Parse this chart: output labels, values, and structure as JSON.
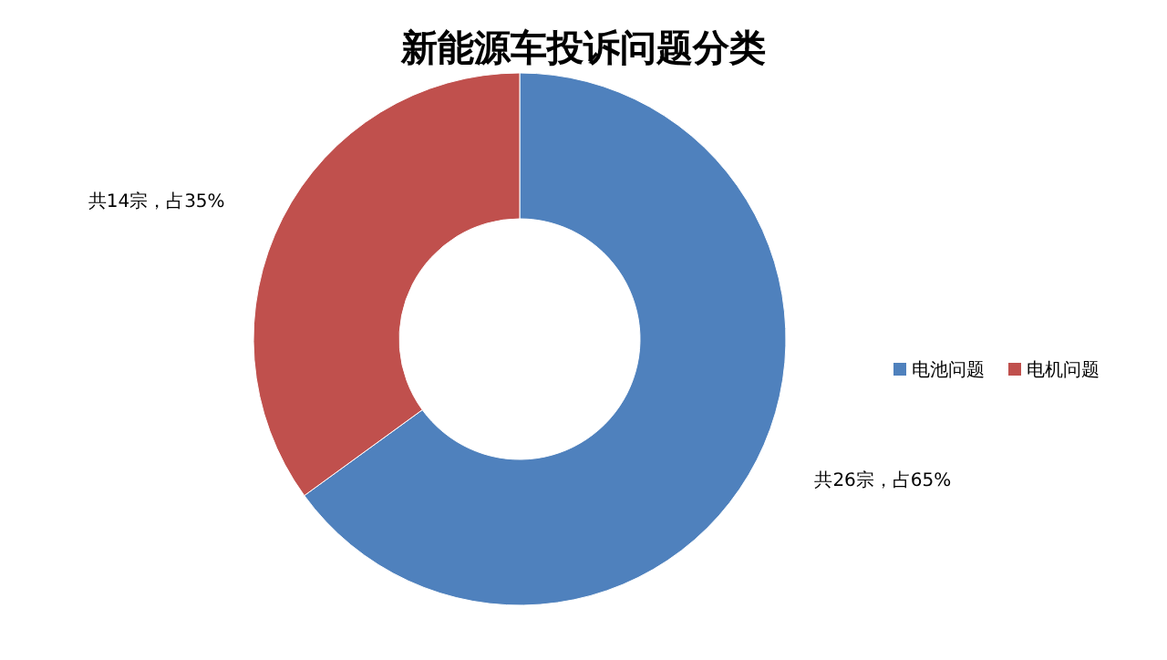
{
  "chart_data": {
    "type": "donut",
    "title": "新能源车投诉问题分类",
    "categories": [
      "电池问题",
      "电机问题"
    ],
    "values": [
      26,
      14
    ],
    "colors": [
      "#4f81bd",
      "#c0504d"
    ],
    "value_labels": [
      "共26宗，占65%",
      "共14宗，占35%"
    ],
    "legend": "right"
  }
}
